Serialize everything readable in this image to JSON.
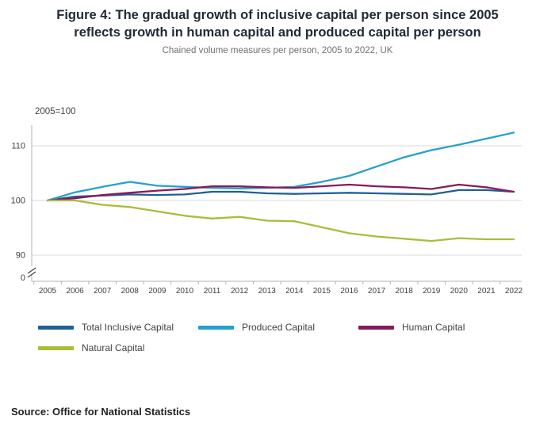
{
  "header": {
    "title_line1": "Figure 4: The gradual growth of inclusive capital per person since 2005",
    "title_line2": "reflects growth in human capital and produced capital per person"
  },
  "source": "Source: Office for National Statistics",
  "chart_data": {
    "type": "line",
    "title": "Figure 4: The gradual growth of inclusive capital per person since 2005 reflects growth in human capital and produced capital per person",
    "subtitle": "Chained volume measures per person, 2005 to 2022, UK",
    "axis_note": "2005=100",
    "x": [
      2005,
      2006,
      2007,
      2008,
      2009,
      2010,
      2011,
      2012,
      2013,
      2014,
      2015,
      2016,
      2017,
      2018,
      2019,
      2020,
      2021,
      2022
    ],
    "yticks": [
      0,
      90,
      100,
      110
    ],
    "ylim": [
      0,
      114
    ],
    "axis_break": true,
    "grid": "horizontal",
    "legend_position": "bottom",
    "colors": {
      "grid": "#dadada",
      "axis": "#b1b4b6",
      "tick_text": "#414042"
    },
    "series": [
      {
        "name": "Total Inclusive Capital",
        "color": "#206095",
        "values": [
          100,
          100.7,
          100.9,
          101.1,
          101.0,
          101.1,
          101.6,
          101.6,
          101.3,
          101.2,
          101.3,
          101.4,
          101.3,
          101.2,
          101.1,
          101.9,
          101.9,
          101.6
        ]
      },
      {
        "name": "Produced Capital",
        "color": "#27A0CC",
        "values": [
          100,
          101.5,
          102.5,
          103.4,
          102.7,
          102.5,
          102.3,
          102.2,
          102.3,
          102.5,
          103.4,
          104.5,
          106.2,
          107.9,
          109.2,
          110.2,
          111.3,
          112.4
        ]
      },
      {
        "name": "Human Capital",
        "color": "#871A5B",
        "values": [
          100,
          100.4,
          101.0,
          101.4,
          101.8,
          102.1,
          102.6,
          102.6,
          102.4,
          102.3,
          102.6,
          102.9,
          102.6,
          102.4,
          102.1,
          102.9,
          102.4,
          101.6
        ]
      },
      {
        "name": "Natural Capital",
        "color": "#A8BD3A",
        "values": [
          100,
          100.0,
          99.2,
          98.8,
          98.0,
          97.2,
          96.7,
          97.0,
          96.3,
          96.2,
          95.1,
          94.0,
          93.4,
          93.0,
          92.6,
          93.1,
          92.9,
          92.9
        ]
      }
    ]
  }
}
